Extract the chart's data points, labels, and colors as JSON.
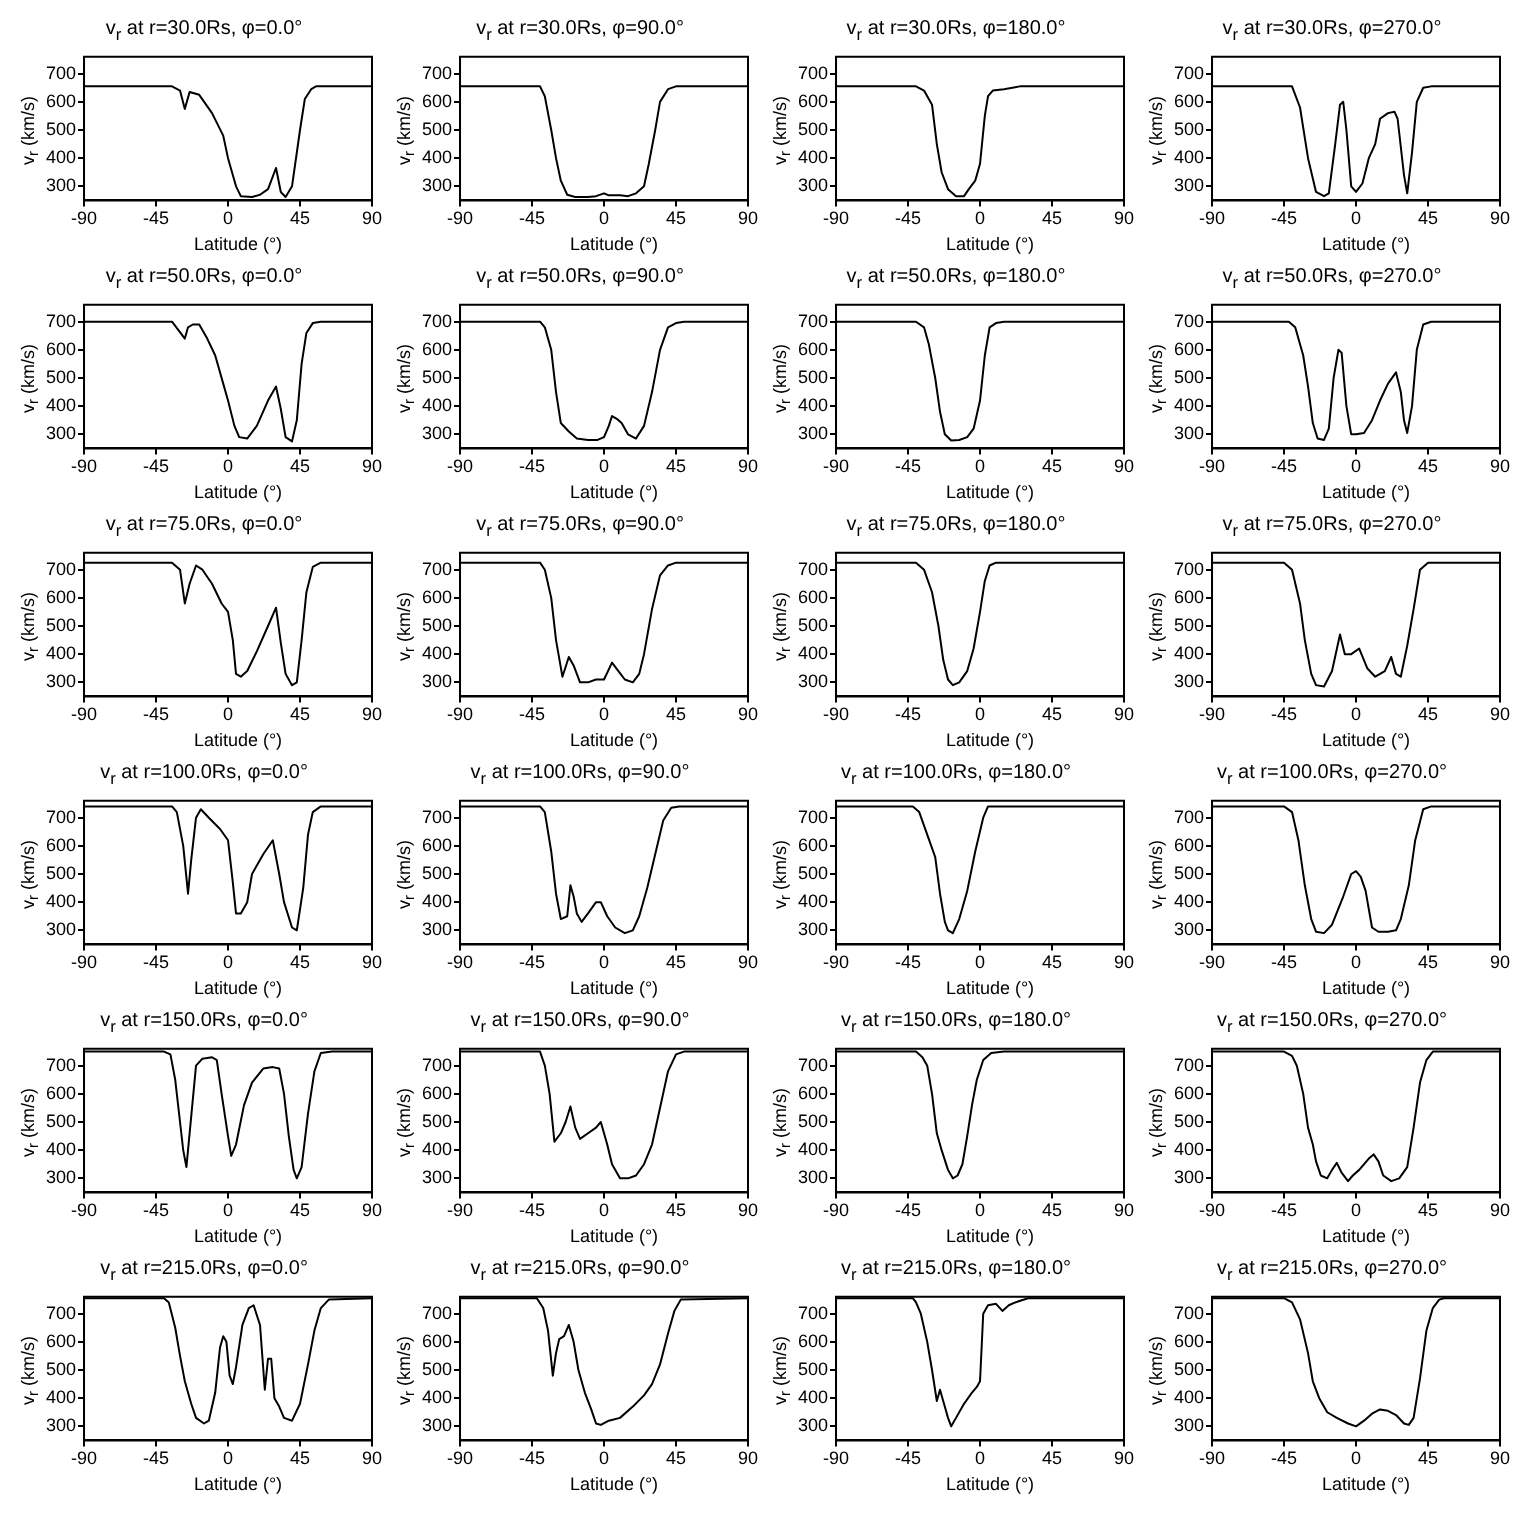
{
  "chart_data": [
    {
      "type": "line",
      "title": "v$_{r}$ at r=30.0Rs, φ=0.0°",
      "xlabel": "Latitude (°)",
      "ylabel": "v$_{r}$ (km/s)",
      "color": "#000000",
      "xlim": [
        -90,
        90
      ],
      "xticks": [
        -90,
        -45,
        0,
        45,
        90
      ],
      "ylim": [
        250,
        760
      ],
      "yticks": [
        300,
        400,
        500,
        600,
        700
      ],
      "x": [
        -90,
        -35,
        -30,
        -27,
        -24,
        -18,
        -10,
        -3,
        0,
        5,
        8,
        15,
        20,
        25,
        30,
        33,
        36,
        40,
        45,
        48,
        52,
        55,
        90
      ],
      "values": [
        655,
        655,
        640,
        575,
        635,
        625,
        560,
        480,
        400,
        300,
        265,
        262,
        270,
        290,
        365,
        280,
        262,
        300,
        500,
        610,
        645,
        655,
        655
      ]
    },
    {
      "type": "line",
      "title": "v$_{r}$ at r=30.0Rs, φ=90.0°",
      "xlabel": "Latitude (°)",
      "ylabel": "v$_{r}$ (km/s)",
      "color": "#000000",
      "xlim": [
        -90,
        90
      ],
      "xticks": [
        -90,
        -45,
        0,
        45,
        90
      ],
      "ylim": [
        250,
        760
      ],
      "yticks": [
        300,
        400,
        500,
        600,
        700
      ],
      "x": [
        -90,
        -40,
        -37,
        -33,
        -30,
        -27,
        -23,
        -18,
        -10,
        -5,
        0,
        3,
        10,
        15,
        20,
        25,
        28,
        32,
        35,
        40,
        45,
        90
      ],
      "values": [
        655,
        655,
        620,
        500,
        400,
        320,
        270,
        262,
        262,
        265,
        275,
        268,
        268,
        265,
        275,
        300,
        380,
        500,
        600,
        645,
        655,
        655
      ]
    },
    {
      "type": "line",
      "title": "v$_{r}$ at r=30.0Rs, φ=180.0°",
      "xlabel": "Latitude (°)",
      "ylabel": "v$_{r}$ (km/s)",
      "color": "#000000",
      "xlim": [
        -90,
        90
      ],
      "xticks": [
        -90,
        -45,
        0,
        45,
        90
      ],
      "ylim": [
        250,
        760
      ],
      "yticks": [
        300,
        400,
        500,
        600,
        700
      ],
      "x": [
        -90,
        -40,
        -35,
        -30,
        -27,
        -24,
        -20,
        -15,
        -10,
        -7,
        -3,
        0,
        3,
        5,
        8,
        15,
        25,
        90
      ],
      "values": [
        655,
        655,
        640,
        590,
        450,
        350,
        290,
        265,
        265,
        290,
        320,
        380,
        550,
        620,
        640,
        645,
        655,
        655
      ]
    },
    {
      "type": "line",
      "title": "v$_{r}$ at r=30.0Rs, φ=270.0°",
      "xlabel": "Latitude (°)",
      "ylabel": "v$_{r}$ (km/s)",
      "color": "#000000",
      "xlim": [
        -90,
        90
      ],
      "xticks": [
        -90,
        -45,
        0,
        45,
        90
      ],
      "ylim": [
        250,
        760
      ],
      "yticks": [
        300,
        400,
        500,
        600,
        700
      ],
      "x": [
        -90,
        -40,
        -35,
        -30,
        -25,
        -20,
        -17,
        -13,
        -10,
        -8,
        -6,
        -3,
        0,
        4,
        8,
        12,
        15,
        20,
        24,
        26,
        30,
        32,
        35,
        38,
        42,
        47,
        90
      ],
      "values": [
        655,
        655,
        580,
        400,
        280,
        265,
        275,
        450,
        590,
        600,
        500,
        300,
        280,
        310,
        400,
        450,
        540,
        560,
        565,
        540,
        340,
        275,
        420,
        600,
        650,
        655,
        655
      ]
    },
    {
      "type": "line",
      "title": "v$_{r}$ at r=50.0Rs, φ=0.0°",
      "xlabel": "Latitude (°)",
      "ylabel": "v$_{r}$ (km/s)",
      "color": "#000000",
      "xlim": [
        -90,
        90
      ],
      "xticks": [
        -90,
        -45,
        0,
        45,
        90
      ],
      "ylim": [
        250,
        760
      ],
      "yticks": [
        300,
        400,
        500,
        600,
        700
      ],
      "x": [
        -90,
        -35,
        -27,
        -25,
        -22,
        -18,
        -13,
        -8,
        -3,
        0,
        4,
        7,
        12,
        18,
        25,
        30,
        33,
        36,
        40,
        43,
        46,
        49,
        53,
        58,
        90
      ],
      "values": [
        700,
        700,
        640,
        680,
        690,
        690,
        640,
        580,
        480,
        420,
        330,
        290,
        285,
        330,
        420,
        470,
        390,
        290,
        275,
        350,
        550,
        660,
        695,
        700,
        700
      ]
    },
    {
      "type": "line",
      "title": "v$_{r}$ at r=50.0Rs, φ=90.0°",
      "xlabel": "Latitude (°)",
      "ylabel": "v$_{r}$ (km/s)",
      "color": "#000000",
      "xlim": [
        -90,
        90
      ],
      "xticks": [
        -90,
        -45,
        0,
        45,
        90
      ],
      "ylim": [
        250,
        760
      ],
      "yticks": [
        300,
        400,
        500,
        600,
        700
      ],
      "x": [
        -90,
        -40,
        -37,
        -33,
        -30,
        -27,
        -22,
        -17,
        -10,
        -4,
        0,
        3,
        5,
        8,
        11,
        15,
        20,
        25,
        30,
        35,
        40,
        45,
        50,
        90
      ],
      "values": [
        700,
        700,
        680,
        600,
        450,
        340,
        310,
        285,
        280,
        280,
        290,
        330,
        365,
        355,
        340,
        300,
        285,
        330,
        450,
        600,
        680,
        695,
        700,
        700
      ]
    },
    {
      "type": "line",
      "title": "v$_{r}$ at r=50.0Rs, φ=180.0°",
      "xlabel": "Latitude (°)",
      "ylabel": "v$_{r}$ (km/s)",
      "color": "#000000",
      "xlim": [
        -90,
        90
      ],
      "xticks": [
        -90,
        -45,
        0,
        45,
        90
      ],
      "ylim": [
        250,
        760
      ],
      "yticks": [
        300,
        400,
        500,
        600,
        700
      ],
      "x": [
        -90,
        -40,
        -35,
        -32,
        -28,
        -25,
        -22,
        -18,
        -13,
        -8,
        -4,
        0,
        3,
        6,
        10,
        15,
        90
      ],
      "values": [
        700,
        700,
        680,
        620,
        500,
        380,
        300,
        278,
        280,
        290,
        320,
        420,
        580,
        680,
        695,
        700,
        700
      ]
    },
    {
      "type": "line",
      "title": "v$_{r}$ at r=50.0Rs, φ=270.0°",
      "xlabel": "Latitude (°)",
      "ylabel": "v$_{r}$ (km/s)",
      "color": "#000000",
      "xlim": [
        -90,
        90
      ],
      "xticks": [
        -90,
        -45,
        0,
        45,
        90
      ],
      "ylim": [
        250,
        760
      ],
      "yticks": [
        300,
        400,
        500,
        600,
        700
      ],
      "x": [
        -90,
        -42,
        -38,
        -33,
        -30,
        -27,
        -24,
        -20,
        -17,
        -14,
        -11,
        -9,
        -6,
        -3,
        0,
        5,
        10,
        15,
        20,
        25,
        28,
        30,
        32,
        35,
        38,
        42,
        47,
        90
      ],
      "values": [
        700,
        700,
        680,
        580,
        470,
        340,
        285,
        280,
        320,
        500,
        600,
        590,
        400,
        300,
        300,
        305,
        350,
        420,
        480,
        520,
        450,
        350,
        305,
        400,
        600,
        690,
        700,
        700
      ]
    },
    {
      "type": "line",
      "title": "v$_{r}$ at r=75.0Rs, φ=0.0°",
      "xlabel": "Latitude (°)",
      "ylabel": "v$_{r}$ (km/s)",
      "color": "#000000",
      "xlim": [
        -90,
        90
      ],
      "xticks": [
        -90,
        -45,
        0,
        45,
        90
      ],
      "ylim": [
        250,
        760
      ],
      "yticks": [
        300,
        400,
        500,
        600,
        700
      ],
      "x": [
        -90,
        -35,
        -30,
        -27,
        -24,
        -20,
        -16,
        -10,
        -4,
        0,
        3,
        5,
        8,
        12,
        18,
        25,
        30,
        33,
        36,
        40,
        43,
        46,
        49,
        53,
        58,
        90
      ],
      "values": [
        725,
        725,
        700,
        580,
        650,
        715,
        700,
        650,
        580,
        550,
        450,
        330,
        320,
        340,
        410,
        500,
        565,
        440,
        330,
        290,
        300,
        450,
        620,
        710,
        725,
        725
      ]
    },
    {
      "type": "line",
      "title": "v$_{r}$ at r=75.0Rs, φ=90.0°",
      "xlabel": "Latitude (°)",
      "ylabel": "v$_{r}$ (km/s)",
      "color": "#000000",
      "xlim": [
        -90,
        90
      ],
      "xticks": [
        -90,
        -45,
        0,
        45,
        90
      ],
      "ylim": [
        250,
        760
      ],
      "yticks": [
        300,
        400,
        500,
        600,
        700
      ],
      "x": [
        -90,
        -40,
        -37,
        -33,
        -30,
        -26,
        -22,
        -19,
        -15,
        -10,
        -5,
        0,
        5,
        9,
        13,
        18,
        22,
        25,
        30,
        35,
        40,
        45,
        90
      ],
      "values": [
        725,
        725,
        700,
        600,
        450,
        320,
        390,
        360,
        300,
        300,
        310,
        310,
        370,
        340,
        310,
        300,
        330,
        400,
        560,
        680,
        715,
        725,
        725
      ]
    },
    {
      "type": "line",
      "title": "v$_{r}$ at r=75.0Rs, φ=180.0°",
      "xlabel": "Latitude (°)",
      "ylabel": "v$_{r}$ (km/s)",
      "color": "#000000",
      "xlim": [
        -90,
        90
      ],
      "xticks": [
        -90,
        -45,
        0,
        45,
        90
      ],
      "ylim": [
        250,
        760
      ],
      "yticks": [
        300,
        400,
        500,
        600,
        700
      ],
      "x": [
        -90,
        -40,
        -35,
        -30,
        -26,
        -23,
        -20,
        -17,
        -13,
        -8,
        -4,
        0,
        3,
        6,
        10,
        90
      ],
      "values": [
        725,
        725,
        700,
        620,
        500,
        380,
        310,
        290,
        300,
        340,
        420,
        550,
        660,
        715,
        725,
        725
      ]
    },
    {
      "type": "line",
      "title": "v$_{r}$ at r=75.0Rs, φ=270.0°",
      "xlabel": "Latitude (°)",
      "ylabel": "v$_{r}$ (km/s)",
      "color": "#000000",
      "xlim": [
        -90,
        90
      ],
      "xticks": [
        -90,
        -45,
        0,
        45,
        90
      ],
      "ylim": [
        250,
        760
      ],
      "yticks": [
        300,
        400,
        500,
        600,
        700
      ],
      "x": [
        -90,
        -45,
        -40,
        -35,
        -32,
        -28,
        -25,
        -20,
        -15,
        -10,
        -7,
        -3,
        2,
        7,
        12,
        18,
        22,
        25,
        28,
        32,
        36,
        40,
        45,
        90
      ],
      "values": [
        725,
        725,
        700,
        580,
        450,
        330,
        290,
        285,
        340,
        470,
        400,
        400,
        420,
        350,
        320,
        340,
        390,
        330,
        320,
        430,
        560,
        700,
        725,
        725
      ]
    },
    {
      "type": "line",
      "title": "v$_{r}$ at r=100.0Rs, φ=0.0°",
      "xlabel": "Latitude (°)",
      "ylabel": "v$_{r}$ (km/s)",
      "color": "#000000",
      "xlim": [
        -90,
        90
      ],
      "xticks": [
        -90,
        -45,
        0,
        45,
        90
      ],
      "ylim": [
        250,
        760
      ],
      "yticks": [
        300,
        400,
        500,
        600,
        700
      ],
      "x": [
        -90,
        -35,
        -32,
        -28,
        -25,
        -23,
        -20,
        -17,
        -12,
        -5,
        0,
        3,
        5,
        8,
        12,
        15,
        22,
        28,
        32,
        35,
        40,
        43,
        47,
        50,
        53,
        58,
        90
      ],
      "values": [
        740,
        740,
        720,
        600,
        430,
        550,
        700,
        730,
        700,
        660,
        620,
        470,
        360,
        360,
        400,
        500,
        570,
        620,
        500,
        400,
        310,
        300,
        450,
        640,
        720,
        740,
        740
      ]
    },
    {
      "type": "line",
      "title": "v$_{r}$ at r=100.0Rs, φ=90.0°",
      "xlabel": "Latitude (°)",
      "ylabel": "v$_{r}$ (km/s)",
      "color": "#000000",
      "xlim": [
        -90,
        90
      ],
      "xticks": [
        -90,
        -45,
        0,
        45,
        90
      ],
      "ylim": [
        250,
        760
      ],
      "yticks": [
        300,
        400,
        500,
        600,
        700
      ],
      "x": [
        -90,
        -40,
        -37,
        -33,
        -30,
        -27,
        -23,
        -21,
        -19,
        -17,
        -14,
        -10,
        -5,
        -2,
        2,
        7,
        13,
        18,
        22,
        27,
        32,
        37,
        42,
        47,
        90
      ],
      "values": [
        740,
        740,
        720,
        580,
        430,
        340,
        350,
        460,
        420,
        360,
        330,
        360,
        400,
        400,
        350,
        310,
        290,
        300,
        350,
        450,
        570,
        690,
        735,
        740,
        740
      ]
    },
    {
      "type": "line",
      "title": "v$_{r}$ at r=100.0Rs, φ=180.0°",
      "xlabel": "Latitude (°)",
      "ylabel": "v$_{r}$ (km/s)",
      "color": "#000000",
      "xlim": [
        -90,
        90
      ],
      "xticks": [
        -90,
        -45,
        0,
        45,
        90
      ],
      "ylim": [
        250,
        760
      ],
      "yticks": [
        300,
        400,
        500,
        600,
        700
      ],
      "x": [
        -90,
        -42,
        -38,
        -33,
        -28,
        -25,
        -22,
        -20,
        -17,
        -13,
        -8,
        -3,
        2,
        5,
        90
      ],
      "values": [
        740,
        740,
        720,
        640,
        560,
        430,
        330,
        300,
        290,
        340,
        440,
        580,
        700,
        740,
        740
      ]
    },
    {
      "type": "line",
      "title": "v$_{r}$ at r=100.0Rs, φ=270.0°",
      "xlabel": "Latitude (°)",
      "ylabel": "v$_{r}$ (km/s)",
      "color": "#000000",
      "xlim": [
        -90,
        90
      ],
      "xticks": [
        -90,
        -45,
        0,
        45,
        90
      ],
      "ylim": [
        250,
        760
      ],
      "yticks": [
        300,
        400,
        500,
        600,
        700
      ],
      "x": [
        -90,
        -45,
        -40,
        -36,
        -32,
        -28,
        -25,
        -20,
        -15,
        -8,
        -3,
        0,
        3,
        6,
        10,
        14,
        20,
        25,
        28,
        33,
        37,
        42,
        47,
        90
      ],
      "values": [
        740,
        740,
        720,
        620,
        460,
        340,
        295,
        290,
        320,
        420,
        500,
        510,
        490,
        440,
        310,
        295,
        295,
        300,
        340,
        460,
        620,
        730,
        740,
        740
      ]
    },
    {
      "type": "line",
      "title": "v$_{r}$ at r=150.0Rs, φ=0.0°",
      "xlabel": "Latitude (°)",
      "ylabel": "v$_{r}$ (km/s)",
      "color": "#000000",
      "xlim": [
        -90,
        90
      ],
      "xticks": [
        -90,
        -45,
        0,
        45,
        90
      ],
      "ylim": [
        250,
        760
      ],
      "yticks": [
        300,
        400,
        500,
        600,
        700
      ],
      "x": [
        -90,
        -40,
        -36,
        -33,
        -30,
        -28,
        -26,
        -23,
        -20,
        -16,
        -10,
        -7,
        -4,
        0,
        2,
        5,
        10,
        15,
        22,
        28,
        32,
        35,
        38,
        41,
        43,
        46,
        50,
        54,
        58,
        65,
        90
      ],
      "values": [
        750,
        750,
        740,
        650,
        500,
        400,
        340,
        520,
        700,
        725,
        730,
        720,
        600,
        450,
        380,
        420,
        560,
        640,
        690,
        695,
        690,
        600,
        450,
        330,
        300,
        340,
        530,
        680,
        745,
        750,
        750
      ]
    },
    {
      "type": "line",
      "title": "v$_{r}$ at r=150.0Rs, φ=90.0°",
      "xlabel": "Latitude (°)",
      "ylabel": "v$_{r}$ (km/s)",
      "color": "#000000",
      "xlim": [
        -90,
        90
      ],
      "xticks": [
        -90,
        -45,
        0,
        45,
        90
      ],
      "ylim": [
        250,
        760
      ],
      "yticks": [
        300,
        400,
        500,
        600,
        700
      ],
      "x": [
        -90,
        -40,
        -37,
        -34,
        -31,
        -27,
        -24,
        -21,
        -18,
        -15,
        -10,
        -5,
        -2,
        2,
        5,
        10,
        15,
        20,
        25,
        30,
        35,
        40,
        45,
        50,
        90
      ],
      "values": [
        750,
        750,
        700,
        600,
        430,
        460,
        500,
        555,
        480,
        440,
        460,
        480,
        500,
        420,
        350,
        300,
        300,
        310,
        350,
        420,
        550,
        680,
        740,
        750,
        750
      ]
    },
    {
      "type": "line",
      "title": "v$_{r}$ at r=150.0Rs, φ=180.0°",
      "xlabel": "Latitude (°)",
      "ylabel": "v$_{r}$ (km/s)",
      "color": "#000000",
      "xlim": [
        -90,
        90
      ],
      "xticks": [
        -90,
        -45,
        0,
        45,
        90
      ],
      "ylim": [
        250,
        760
      ],
      "yticks": [
        300,
        400,
        500,
        600,
        700
      ],
      "x": [
        -90,
        -40,
        -36,
        -33,
        -30,
        -27,
        -24,
        -20,
        -17,
        -14,
        -11,
        -8,
        -5,
        -2,
        2,
        7,
        15,
        90
      ],
      "values": [
        750,
        750,
        730,
        700,
        600,
        460,
        400,
        330,
        300,
        310,
        350,
        450,
        560,
        650,
        720,
        745,
        750,
        750
      ]
    },
    {
      "type": "line",
      "title": "v$_{r}$ at r=150.0Rs, φ=270.0°",
      "xlabel": "Latitude (°)",
      "ylabel": "v$_{r}$ (km/s)",
      "color": "#000000",
      "xlim": [
        -90,
        90
      ],
      "xticks": [
        -90,
        -45,
        0,
        45,
        90
      ],
      "ylim": [
        250,
        760
      ],
      "yticks": [
        300,
        400,
        500,
        600,
        700
      ],
      "x": [
        -90,
        -45,
        -40,
        -37,
        -33,
        -30,
        -27,
        -25,
        -22,
        -18,
        -15,
        -12,
        -9,
        -5,
        -2,
        2,
        8,
        11,
        14,
        17,
        22,
        27,
        32,
        36,
        40,
        44,
        48,
        90
      ],
      "values": [
        750,
        750,
        735,
        700,
        600,
        480,
        420,
        360,
        310,
        300,
        330,
        355,
        320,
        290,
        310,
        330,
        370,
        385,
        360,
        310,
        290,
        300,
        340,
        480,
        640,
        720,
        750,
        750
      ]
    },
    {
      "type": "line",
      "title": "v$_{r}$ at r=215.0Rs, φ=0.0°",
      "xlabel": "Latitude (°)",
      "ylabel": "v$_{r}$ (km/s)",
      "color": "#000000",
      "xlim": [
        -90,
        90
      ],
      "xticks": [
        -90,
        -45,
        0,
        45,
        90
      ],
      "ylim": [
        250,
        760
      ],
      "yticks": [
        300,
        400,
        500,
        600,
        700
      ],
      "x": [
        -90,
        -40,
        -37,
        -33,
        -30,
        -27,
        -23,
        -20,
        -15,
        -12,
        -8,
        -5,
        -3,
        -1,
        1,
        3,
        5,
        9,
        13,
        16,
        20,
        23,
        25,
        27,
        29,
        32,
        35,
        40,
        45,
        50,
        54,
        58,
        63,
        90
      ],
      "values": [
        755,
        755,
        740,
        650,
        550,
        460,
        380,
        330,
        310,
        320,
        420,
        580,
        620,
        600,
        480,
        450,
        510,
        660,
        720,
        730,
        660,
        430,
        540,
        540,
        400,
        370,
        330,
        320,
        380,
        520,
        640,
        720,
        750,
        755
      ]
    },
    {
      "type": "line",
      "title": "v$_{r}$ at r=215.0Rs, φ=90.0°",
      "xlabel": "Latitude (°)",
      "ylabel": "v$_{r}$ (km/s)",
      "color": "#000000",
      "xlim": [
        -90,
        90
      ],
      "xticks": [
        -90,
        -45,
        0,
        45,
        90
      ],
      "ylim": [
        250,
        760
      ],
      "yticks": [
        300,
        400,
        500,
        600,
        700
      ],
      "x": [
        -90,
        -42,
        -38,
        -35,
        -32,
        -30,
        -28,
        -25,
        -22,
        -19,
        -16,
        -12,
        -8,
        -5,
        -2,
        3,
        10,
        18,
        25,
        30,
        35,
        40,
        44,
        48,
        90
      ],
      "values": [
        755,
        755,
        720,
        640,
        480,
        560,
        610,
        620,
        660,
        600,
        500,
        420,
        360,
        310,
        305,
        320,
        330,
        370,
        410,
        450,
        520,
        630,
        710,
        750,
        755
      ]
    },
    {
      "type": "line",
      "title": "v$_{r}$ at r=215.0Rs, φ=180.0°",
      "xlabel": "Latitude (°)",
      "ylabel": "v$_{r}$ (km/s)",
      "color": "#000000",
      "xlim": [
        -90,
        90
      ],
      "xticks": [
        -90,
        -45,
        0,
        45,
        90
      ],
      "ylim": [
        250,
        760
      ],
      "yticks": [
        300,
        400,
        500,
        600,
        700
      ],
      "x": [
        -90,
        -42,
        -40,
        -37,
        -33,
        -30,
        -27,
        -25,
        -23,
        -20,
        -18,
        -15,
        -10,
        -5,
        -2,
        0,
        2,
        5,
        10,
        14,
        18,
        22,
        30,
        90
      ],
      "values": [
        755,
        755,
        740,
        700,
        600,
        500,
        390,
        430,
        390,
        330,
        300,
        330,
        380,
        420,
        440,
        460,
        700,
        730,
        735,
        710,
        730,
        740,
        755,
        755
      ]
    },
    {
      "type": "line",
      "title": "v$_{r}$ at r=215.0Rs, φ=270.0°",
      "xlabel": "Latitude (°)",
      "ylabel": "v$_{r}$ (km/s)",
      "color": "#000000",
      "xlim": [
        -90,
        90
      ],
      "xticks": [
        -90,
        -45,
        0,
        45,
        90
      ],
      "ylim": [
        250,
        760
      ],
      "yticks": [
        300,
        400,
        500,
        600,
        700
      ],
      "x": [
        -90,
        -45,
        -40,
        -35,
        -30,
        -27,
        -23,
        -18,
        -12,
        -5,
        0,
        5,
        10,
        15,
        20,
        25,
        30,
        33,
        36,
        40,
        44,
        48,
        52,
        55,
        90
      ],
      "values": [
        755,
        755,
        740,
        680,
        560,
        460,
        400,
        350,
        330,
        310,
        300,
        320,
        345,
        360,
        355,
        340,
        310,
        305,
        330,
        470,
        640,
        720,
        750,
        755,
        755
      ]
    }
  ]
}
